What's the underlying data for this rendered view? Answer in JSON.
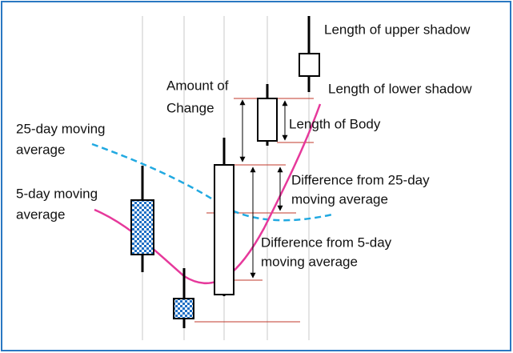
{
  "labels": {
    "upper_shadow": "Length of upper shadow",
    "lower_shadow": "Length of lower shadow",
    "amount_of_change": [
      "Amount of",
      "Change"
    ],
    "length_of_body": "Length of Body",
    "ma25": [
      "25-day moving",
      "average"
    ],
    "ma5": [
      "5-day moving",
      "average"
    ],
    "diff_ma25": [
      "Difference from 25-day",
      "moving average"
    ],
    "diff_ma5": [
      "Difference from 5-day",
      "moving average"
    ]
  }
}
